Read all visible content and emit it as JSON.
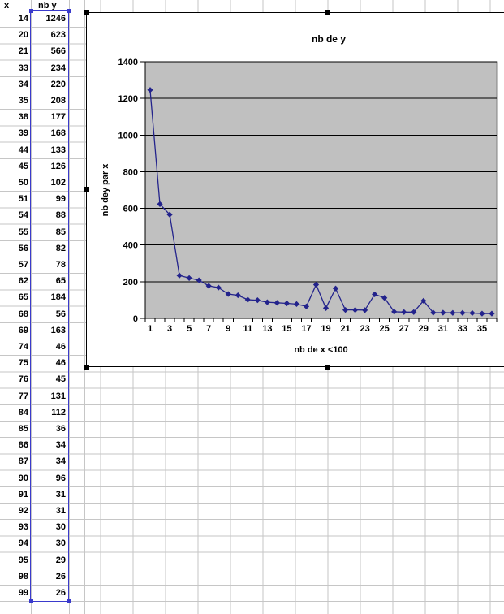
{
  "table": {
    "headers": [
      "x",
      "nb y"
    ],
    "rows": [
      [
        14,
        1246
      ],
      [
        20,
        623
      ],
      [
        21,
        566
      ],
      [
        33,
        234
      ],
      [
        34,
        220
      ],
      [
        35,
        208
      ],
      [
        38,
        177
      ],
      [
        39,
        168
      ],
      [
        44,
        133
      ],
      [
        45,
        126
      ],
      [
        50,
        102
      ],
      [
        51,
        99
      ],
      [
        54,
        88
      ],
      [
        55,
        85
      ],
      [
        56,
        82
      ],
      [
        57,
        78
      ],
      [
        62,
        65
      ],
      [
        65,
        184
      ],
      [
        68,
        56
      ],
      [
        69,
        163
      ],
      [
        74,
        46
      ],
      [
        75,
        46
      ],
      [
        76,
        45
      ],
      [
        77,
        131
      ],
      [
        84,
        112
      ],
      [
        85,
        36
      ],
      [
        86,
        34
      ],
      [
        87,
        34
      ],
      [
        90,
        96
      ],
      [
        91,
        31
      ],
      [
        92,
        31
      ],
      [
        93,
        30
      ],
      [
        94,
        30
      ],
      [
        95,
        29
      ],
      [
        98,
        26
      ],
      [
        99,
        26
      ]
    ]
  },
  "chart_data": {
    "type": "line",
    "title": "nb de y",
    "xlabel": "nb de x <100",
    "ylabel": "nb dey par x",
    "x": [
      1,
      2,
      3,
      4,
      5,
      6,
      7,
      8,
      9,
      10,
      11,
      12,
      13,
      14,
      15,
      16,
      17,
      18,
      19,
      20,
      21,
      22,
      23,
      24,
      25,
      26,
      27,
      28,
      29,
      30,
      31,
      32,
      33,
      34,
      35,
      36
    ],
    "values": [
      1246,
      623,
      566,
      234,
      220,
      208,
      177,
      168,
      133,
      126,
      102,
      99,
      88,
      85,
      82,
      78,
      65,
      184,
      56,
      163,
      46,
      46,
      45,
      131,
      112,
      36,
      34,
      34,
      96,
      31,
      31,
      30,
      30,
      29,
      26,
      26
    ],
    "x_tick_labels": [
      "1",
      "3",
      "5",
      "7",
      "9",
      "11",
      "13",
      "15",
      "17",
      "19",
      "21",
      "23",
      "25",
      "27",
      "29",
      "31",
      "33",
      "35"
    ],
    "y_ticks": [
      "0",
      "200",
      "400",
      "600",
      "800",
      "1000",
      "1200",
      "1400"
    ],
    "ylim": [
      0,
      1400
    ],
    "grid": "horizontal",
    "legend": "none",
    "marker": "diamond"
  },
  "colors": {
    "series_navy": "#23238C",
    "plot_bg": "#C0C0C0",
    "plot_border": "#808080",
    "chart_gridline": "#000000",
    "sheet_gridline": "#C6C6C6",
    "selection_blue": "#3A3ACC",
    "handle_black": "#000000",
    "text": "#000000"
  }
}
